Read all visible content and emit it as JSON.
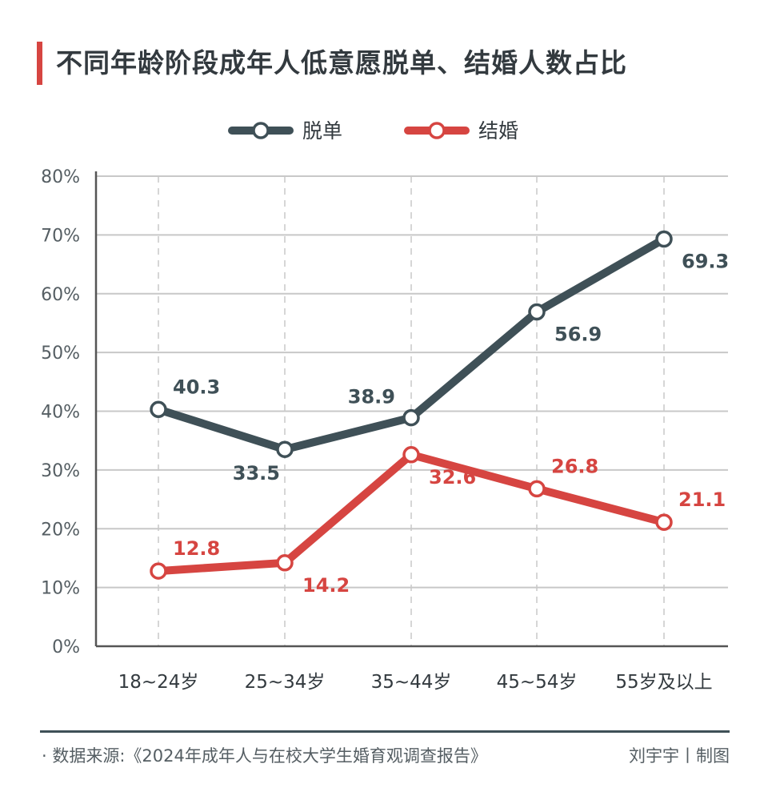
{
  "title": "不同年龄阶段成年人低意愿脱单、结婚人数占比",
  "colors": {
    "accent": "#d64541",
    "series_dark": "#3f5057",
    "grid": "#c8c8c8",
    "axis": "#555555",
    "text": "#333a3f"
  },
  "chart_data": {
    "type": "line",
    "title": "不同年龄阶段成年人低意愿脱单、结婚人数占比",
    "categories": [
      "18~24岁",
      "25~34岁",
      "35~44岁",
      "45~54岁",
      "55岁及以上"
    ],
    "y_ticks": [
      "0%",
      "10%",
      "20%",
      "30%",
      "40%",
      "50%",
      "60%",
      "70%",
      "80%"
    ],
    "ylim": [
      0,
      80
    ],
    "grid": true,
    "legend_position": "top-center",
    "series": [
      {
        "name": "脱单",
        "color": "#3f5057",
        "values": [
          40.3,
          33.5,
          38.9,
          56.9,
          69.3
        ],
        "labels": [
          "40.3",
          "33.5",
          "38.9",
          "56.9",
          "69.3"
        ],
        "label_pos": [
          "above-right",
          "below-left",
          "above-left",
          "below-right",
          "below-right"
        ]
      },
      {
        "name": "结婚",
        "color": "#d64541",
        "values": [
          12.8,
          14.2,
          32.6,
          26.8,
          21.1
        ],
        "labels": [
          "12.8",
          "14.2",
          "32.6",
          "26.8",
          "21.1"
        ],
        "label_pos": [
          "above-right",
          "below-right",
          "below-right",
          "above-right",
          "above-right"
        ]
      }
    ]
  },
  "footer": {
    "source": "· 数据来源:《2024年成年人与在校大学生婚育观调查报告》",
    "credit": "刘宇宇丨制图"
  }
}
